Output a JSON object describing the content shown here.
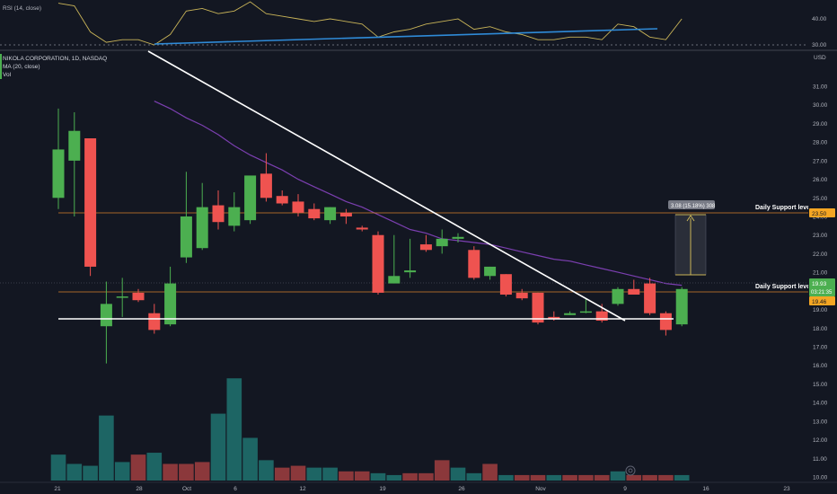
{
  "colors": {
    "background": "#131722",
    "up": "#4caf50",
    "down": "#ef5350",
    "vol_up": "#26a69a",
    "vol_down": "#ef5350",
    "rsi_line": "#c9b458",
    "rsi_trend": "#2f8bd8",
    "ma_line": "#7b3fb0",
    "support_line": "#d9822b",
    "white": "#ffffff",
    "price_tag": "#4caf50",
    "support_tag": "#f5a623",
    "measure": "#c9b458"
  },
  "rsi_panel": {
    "legend": "RSI (14, close)",
    "axis_labels": [
      "40.00",
      "30.00"
    ]
  },
  "main_panel": {
    "symbol_title": "NIKOLA CORPORATION, 1D, NASDAQ",
    "ma_legend": "MA (20, close)",
    "vol_legend": "Vol",
    "currency": "USD",
    "y_axis_labels": [
      "31.00",
      "30.00",
      "29.00",
      "28.00",
      "27.00",
      "26.00",
      "25.00",
      "24.00",
      "23.00",
      "22.00",
      "21.00",
      "20.00",
      "19.00",
      "18.00",
      "17.00",
      "16.00",
      "15.00",
      "14.00",
      "13.00",
      "12.00",
      "11.00",
      "10.00"
    ],
    "x_axis_labels": [
      "21",
      "28",
      "Oct",
      "6",
      "12",
      "19",
      "26",
      "Nov",
      "9",
      "16",
      "23"
    ],
    "support_upper_text": "Daily Support level",
    "support_lower_text": "Daily Support level",
    "tag_upper": "23.50",
    "tag_price": "19.93",
    "tag_countdown": "03:21:35",
    "tag_lower": "19.46",
    "measure_label": "3.08 (15.18%) 308"
  },
  "chart_data": {
    "type": "candlestick",
    "title": "NIKOLA CORPORATION, 1D, NASDAQ",
    "ylim": [
      10,
      31.4
    ],
    "candles": [
      {
        "o": 25.0,
        "h": 29.8,
        "l": 24.4,
        "c": 27.6
      },
      {
        "o": 27.0,
        "h": 29.6,
        "l": 24.0,
        "c": 28.6
      },
      {
        "o": 28.2,
        "h": 28.2,
        "l": 20.8,
        "c": 21.3
      },
      {
        "o": 18.1,
        "h": 20.5,
        "l": 16.1,
        "c": 19.3
      },
      {
        "o": 19.7,
        "h": 20.7,
        "l": 18.6,
        "c": 19.7
      },
      {
        "o": 19.9,
        "h": 20.1,
        "l": 19.4,
        "c": 19.5
      },
      {
        "o": 18.8,
        "h": 19.3,
        "l": 17.7,
        "c": 17.9
      },
      {
        "o": 18.2,
        "h": 21.3,
        "l": 18.1,
        "c": 20.4
      },
      {
        "o": 21.8,
        "h": 26.4,
        "l": 21.5,
        "c": 24.0
      },
      {
        "o": 22.3,
        "h": 25.8,
        "l": 22.2,
        "c": 24.5
      },
      {
        "o": 24.6,
        "h": 25.4,
        "l": 23.3,
        "c": 23.7
      },
      {
        "o": 23.5,
        "h": 25.3,
        "l": 23.2,
        "c": 24.5
      },
      {
        "o": 23.8,
        "h": 26.1,
        "l": 23.6,
        "c": 26.2
      },
      {
        "o": 26.3,
        "h": 27.4,
        "l": 24.8,
        "c": 25.0
      },
      {
        "o": 25.1,
        "h": 25.4,
        "l": 24.6,
        "c": 24.7
      },
      {
        "o": 24.8,
        "h": 25.2,
        "l": 24.0,
        "c": 24.2
      },
      {
        "o": 24.4,
        "h": 24.7,
        "l": 23.8,
        "c": 23.9
      },
      {
        "o": 23.8,
        "h": 24.5,
        "l": 23.6,
        "c": 24.5
      },
      {
        "o": 24.2,
        "h": 24.4,
        "l": 23.6,
        "c": 24.0
      },
      {
        "o": 23.4,
        "h": 23.5,
        "l": 23.2,
        "c": 23.3
      },
      {
        "o": 23.0,
        "h": 23.2,
        "l": 19.8,
        "c": 19.9
      },
      {
        "o": 20.4,
        "h": 23.0,
        "l": 20.4,
        "c": 20.8
      },
      {
        "o": 21.0,
        "h": 22.8,
        "l": 20.7,
        "c": 21.1
      },
      {
        "o": 22.5,
        "h": 23.0,
        "l": 22.1,
        "c": 22.2
      },
      {
        "o": 22.4,
        "h": 23.3,
        "l": 22.0,
        "c": 22.8
      },
      {
        "o": 22.8,
        "h": 23.1,
        "l": 22.6,
        "c": 22.9
      },
      {
        "o": 22.2,
        "h": 22.4,
        "l": 20.6,
        "c": 20.7
      },
      {
        "o": 20.8,
        "h": 21.3,
        "l": 20.6,
        "c": 21.3
      },
      {
        "o": 20.9,
        "h": 20.9,
        "l": 19.7,
        "c": 19.8
      },
      {
        "o": 19.9,
        "h": 20.1,
        "l": 19.5,
        "c": 19.6
      },
      {
        "o": 19.9,
        "h": 19.9,
        "l": 18.2,
        "c": 18.3
      },
      {
        "o": 18.6,
        "h": 18.9,
        "l": 18.4,
        "c": 18.5
      },
      {
        "o": 18.7,
        "h": 18.9,
        "l": 18.7,
        "c": 18.8
      },
      {
        "o": 18.9,
        "h": 19.6,
        "l": 18.8,
        "c": 18.9
      },
      {
        "o": 18.9,
        "h": 19.3,
        "l": 18.3,
        "c": 18.4
      },
      {
        "o": 19.3,
        "h": 20.2,
        "l": 19.2,
        "c": 20.1
      },
      {
        "o": 20.1,
        "h": 20.6,
        "l": 19.9,
        "c": 19.8
      },
      {
        "o": 20.4,
        "h": 20.7,
        "l": 18.7,
        "c": 18.8
      },
      {
        "o": 18.8,
        "h": 18.9,
        "l": 17.6,
        "c": 17.9
      },
      {
        "o": 18.2,
        "h": 20.2,
        "l": 18.1,
        "c": 20.1
      }
    ],
    "volume": [
      {
        "v": 11.2,
        "up": true
      },
      {
        "v": 10.7,
        "up": true
      },
      {
        "v": 10.6,
        "up": true
      },
      {
        "v": 13.3,
        "up": true
      },
      {
        "v": 10.8,
        "up": true
      },
      {
        "v": 11.2,
        "up": false
      },
      {
        "v": 11.3,
        "up": true
      },
      {
        "v": 10.7,
        "up": false
      },
      {
        "v": 10.7,
        "up": false
      },
      {
        "v": 10.8,
        "up": false
      },
      {
        "v": 13.4,
        "up": true
      },
      {
        "v": 15.3,
        "up": true
      },
      {
        "v": 12.1,
        "up": true
      },
      {
        "v": 10.9,
        "up": true
      },
      {
        "v": 10.5,
        "up": false
      },
      {
        "v": 10.6,
        "up": false
      },
      {
        "v": 10.5,
        "up": true
      },
      {
        "v": 10.5,
        "up": true
      },
      {
        "v": 10.3,
        "up": false
      },
      {
        "v": 10.3,
        "up": false
      },
      {
        "v": 10.2,
        "up": true
      },
      {
        "v": 10.1,
        "up": true
      },
      {
        "v": 10.2,
        "up": false
      },
      {
        "v": 10.2,
        "up": false
      },
      {
        "v": 10.9,
        "up": false
      },
      {
        "v": 10.5,
        "up": true
      },
      {
        "v": 10.2,
        "up": true
      },
      {
        "v": 10.7,
        "up": false
      },
      {
        "v": 10.1,
        "up": true
      },
      {
        "v": 10.1,
        "up": false
      },
      {
        "v": 10.1,
        "up": false
      },
      {
        "v": 10.1,
        "up": true
      },
      {
        "v": 10.1,
        "up": false
      },
      {
        "v": 10.1,
        "up": false
      },
      {
        "v": 10.1,
        "up": false
      },
      {
        "v": 10.3,
        "up": true
      },
      {
        "v": 10.1,
        "up": false
      },
      {
        "v": 10.1,
        "up": false
      },
      {
        "v": 10.1,
        "up": false
      },
      {
        "v": 10.1,
        "up": true
      }
    ],
    "ma20": [
      null,
      null,
      null,
      null,
      null,
      null,
      30.2,
      29.8,
      29.3,
      28.9,
      28.4,
      27.8,
      27.3,
      26.9,
      26.5,
      26.0,
      25.6,
      25.2,
      24.8,
      24.5,
      24.1,
      23.7,
      23.3,
      23.1,
      22.8,
      22.7,
      22.6,
      22.5,
      22.3,
      22.1,
      21.9,
      21.7,
      21.6,
      21.4,
      21.2,
      21.0,
      20.8,
      20.6,
      20.4,
      20.3
    ],
    "rsi": [
      46,
      45,
      35,
      31,
      32,
      32,
      30,
      34,
      43,
      44,
      42,
      43,
      47,
      42,
      41,
      40,
      39,
      40,
      39,
      38,
      33,
      35,
      36,
      38,
      39,
      40,
      36,
      37,
      35,
      34,
      32,
      32,
      33,
      33,
      32,
      38,
      37,
      33,
      32,
      40
    ],
    "support_upper": 23.5,
    "support_lower": 19.46,
    "last_price": 19.93,
    "measure": {
      "from": 20.4,
      "to": 23.48
    }
  }
}
